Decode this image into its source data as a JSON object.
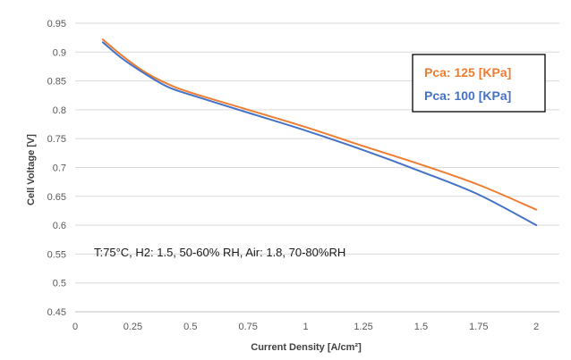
{
  "chart_data": {
    "type": "line",
    "xlabel": "Current Density [A/cm²]",
    "ylabel": "Cell Voltage [V]",
    "xlim": [
      0,
      2.1
    ],
    "ylim": [
      0.45,
      0.95
    ],
    "x_ticks": [
      "0",
      "0.25",
      "0.5",
      "0.75",
      "1",
      "1.25",
      "1.5",
      "1.75",
      "2"
    ],
    "y_ticks": [
      "0.45",
      "0.5",
      "0.55",
      "0.6",
      "0.65",
      "0.7",
      "0.75",
      "0.8",
      "0.85",
      "0.9",
      "0.95"
    ],
    "grid": "horizontal",
    "legend_position": "top-right",
    "annotation": "T:75°C, H2: 1.5, 50-60% RH, Air: 1.8, 70-80%RH",
    "series": [
      {
        "name": "Pca: 125 [KPa]",
        "color": "#ED7D31",
        "x": [
          0.12,
          0.2,
          0.3,
          0.4,
          0.5,
          0.75,
          1.0,
          1.25,
          1.5,
          1.75,
          2.0
        ],
        "values": [
          0.922,
          0.895,
          0.866,
          0.845,
          0.83,
          0.8,
          0.77,
          0.737,
          0.705,
          0.67,
          0.627
        ]
      },
      {
        "name": "Pca: 100 [KPa]",
        "color": "#4472C4",
        "x": [
          0.12,
          0.2,
          0.3,
          0.4,
          0.5,
          0.75,
          1.0,
          1.25,
          1.5,
          1.75,
          2.0
        ],
        "values": [
          0.917,
          0.89,
          0.863,
          0.84,
          0.826,
          0.795,
          0.764,
          0.73,
          0.693,
          0.653,
          0.6
        ]
      }
    ]
  }
}
